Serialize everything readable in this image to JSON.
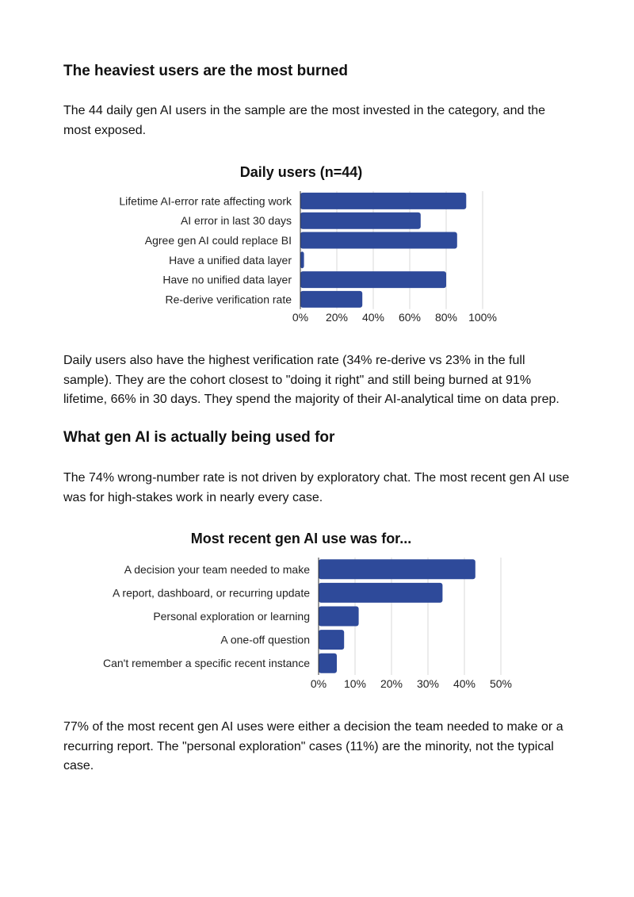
{
  "section1": {
    "heading": "The heaviest users are the most burned",
    "intro": "The 44 daily gen AI users in the sample are the most invested in the category, and the most exposed.",
    "after": "Daily users also have the highest verification rate (34% re-derive vs 23% in the full sample). They are the cohort closest to \"doing it right\" and still being burned at 91% lifetime, 66% in 30 days. They spend the majority of their AI-analytical time on data prep."
  },
  "section2": {
    "heading": "What gen AI is actually being used for",
    "intro": "The 74% wrong-number rate is not driven by exploratory chat. The most recent gen AI use was for high-stakes work in nearly every case.",
    "after": "77% of the most recent gen AI uses were either a decision the team needed to make or a recurring report. The \"personal exploration\" cases (11%) are the minority, not the typical case."
  },
  "chart_data": [
    {
      "type": "bar",
      "orientation": "horizontal",
      "title": "Daily users (n=44)",
      "categories": [
        "Lifetime AI-error rate affecting work",
        "AI error in last 30 days",
        "Agree gen AI could replace BI",
        "Have a unified data layer",
        "Have no unified data layer",
        "Re-derive verification rate"
      ],
      "values": [
        91,
        66,
        86,
        2,
        80,
        34
      ],
      "xlim": [
        0,
        100
      ],
      "ticks": [
        "0%",
        "20%",
        "40%",
        "60%",
        "80%",
        "100%"
      ],
      "tick_values": [
        0,
        20,
        40,
        60,
        80,
        100
      ],
      "bar_color": "#2e4a9a",
      "grid": true
    },
    {
      "type": "bar",
      "orientation": "horizontal",
      "title": "Most recent gen AI use was for...",
      "categories": [
        "A decision your team needed to make",
        "A report, dashboard, or recurring update",
        "Personal exploration or learning",
        "A one-off question",
        "Can't remember a specific recent instance"
      ],
      "values": [
        43,
        34,
        11,
        7,
        5
      ],
      "xlim": [
        0,
        50
      ],
      "ticks": [
        "0%",
        "10%",
        "20%",
        "30%",
        "40%",
        "50%"
      ],
      "tick_values": [
        0,
        10,
        20,
        30,
        40,
        50
      ],
      "bar_color": "#2e4a9a",
      "grid": true
    }
  ]
}
